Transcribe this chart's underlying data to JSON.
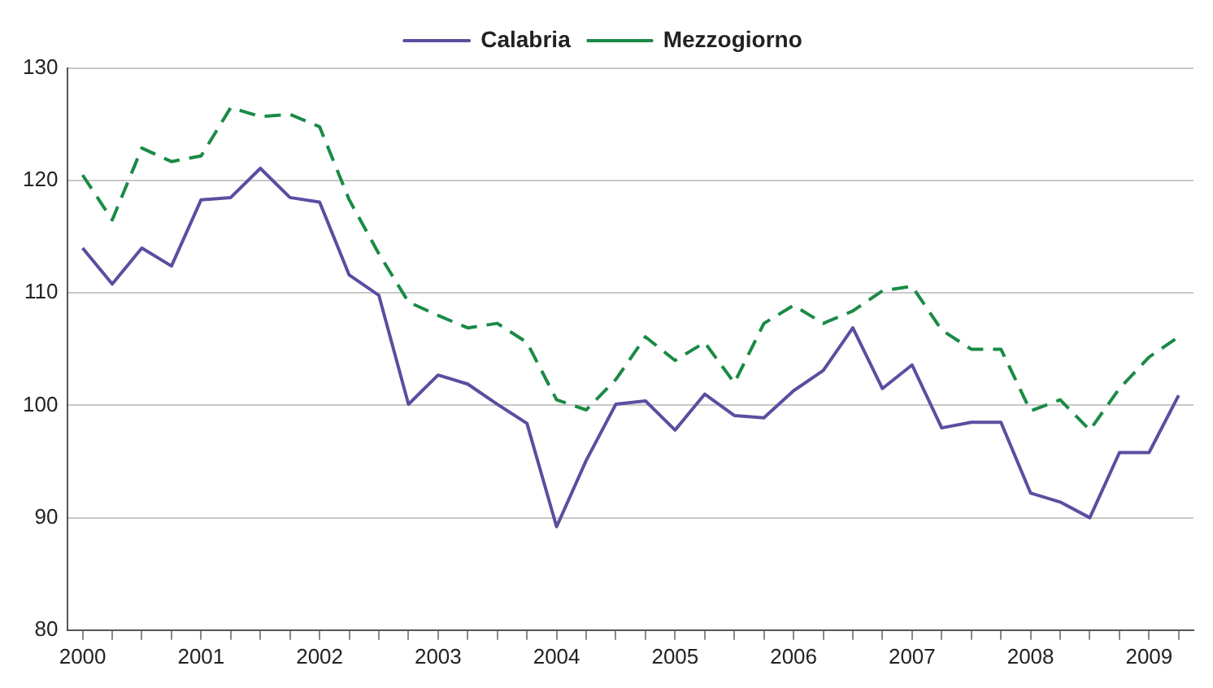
{
  "chart_data": {
    "type": "line",
    "categories": [
      "2000",
      null,
      null,
      null,
      "2001",
      null,
      null,
      null,
      "2002",
      null,
      null,
      null,
      "2003",
      null,
      null,
      null,
      "2004",
      null,
      null,
      null,
      "2005",
      null,
      null,
      null,
      "2006",
      null,
      null,
      null,
      "2007",
      null,
      null,
      null,
      "2008",
      null,
      null,
      null,
      "2009",
      null
    ],
    "series": [
      {
        "name": "Calabria",
        "color": "#5b4ea0",
        "line_style": "solid",
        "values": [
          114.0,
          110.8,
          114.0,
          112.4,
          118.3,
          118.5,
          121.1,
          118.5,
          118.1,
          111.6,
          109.8,
          100.1,
          102.7,
          101.9,
          100.1,
          98.4,
          89.2,
          95.1,
          100.1,
          100.4,
          97.8,
          101.0,
          99.1,
          98.9,
          101.3,
          103.1,
          106.9,
          101.5,
          103.6,
          98.0,
          98.5,
          98.5,
          92.2,
          91.4,
          90.0,
          95.8,
          95.8,
          100.9
        ]
      },
      {
        "name": "Mezzogiorno",
        "color": "#1a8a45",
        "line_style": "dashed",
        "values": [
          120.5,
          116.5,
          122.9,
          121.7,
          122.2,
          126.5,
          125.7,
          125.9,
          124.8,
          118.3,
          113.5,
          109.2,
          108.0,
          106.9,
          107.3,
          105.6,
          100.5,
          99.6,
          102.3,
          106.1,
          104.0,
          105.6,
          102.0,
          107.3,
          108.9,
          107.3,
          108.4,
          110.2,
          110.6,
          106.7,
          105.0,
          105.0,
          99.5,
          100.5,
          97.8,
          101.5,
          104.3,
          106.1
        ]
      }
    ],
    "ylim": [
      80,
      130
    ],
    "yticks": [
      80,
      90,
      100,
      110,
      120,
      130
    ],
    "grid": "y",
    "legend": "top",
    "marker": "none"
  }
}
